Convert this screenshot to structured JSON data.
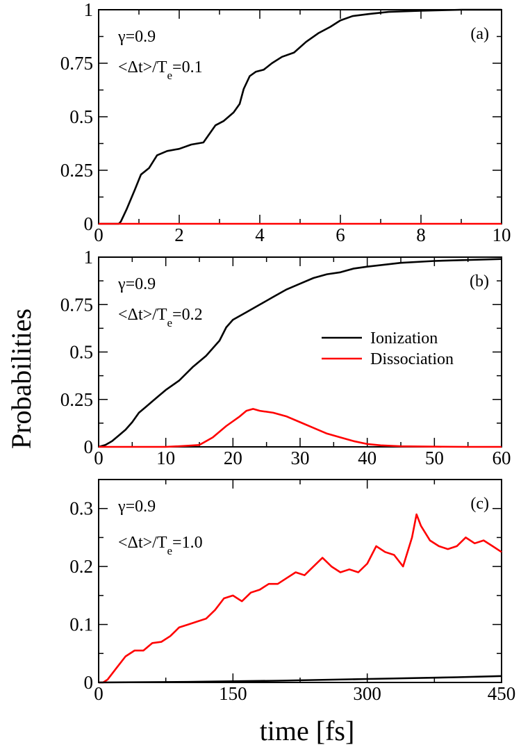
{
  "figure": {
    "ylabel": "Probabilities",
    "xlabel": "time [fs]"
  },
  "colors": {
    "ionization": "#000000",
    "dissociation": "#ff0000"
  },
  "chart_data": [
    {
      "panel": "(a)",
      "type": "line",
      "annotations": {
        "gamma": "γ=0.9",
        "ratio_main": "<Δt>/T",
        "ratio_sub": "e",
        "ratio_value": "=0.1"
      },
      "xlim": [
        0,
        10
      ],
      "ylim": [
        0,
        1
      ],
      "xticks": [
        0,
        2,
        4,
        6,
        8,
        10
      ],
      "yticks": [
        0,
        0.25,
        0.5,
        0.75,
        1
      ],
      "ytick_labels": [
        "0",
        "0.25",
        "0.5",
        "0.75",
        "1"
      ],
      "series": [
        {
          "key": "ionization",
          "x": [
            0,
            0.5,
            0.55,
            0.7,
            0.9,
            1.05,
            1.25,
            1.45,
            1.7,
            2.0,
            2.3,
            2.6,
            2.75,
            2.9,
            3.1,
            3.35,
            3.5,
            3.6,
            3.75,
            3.9,
            4.1,
            4.3,
            4.55,
            4.85,
            5.15,
            5.45,
            5.75,
            6.0,
            6.3,
            6.7,
            7.2,
            8.0,
            9.0,
            10.0
          ],
          "y": [
            0,
            0,
            0.01,
            0.07,
            0.16,
            0.23,
            0.26,
            0.32,
            0.34,
            0.35,
            0.37,
            0.38,
            0.42,
            0.46,
            0.48,
            0.52,
            0.56,
            0.63,
            0.69,
            0.71,
            0.72,
            0.75,
            0.78,
            0.8,
            0.85,
            0.89,
            0.92,
            0.95,
            0.97,
            0.98,
            0.99,
            0.995,
            1.0,
            1.0
          ]
        },
        {
          "key": "dissociation",
          "x": [
            0,
            10
          ],
          "y": [
            0,
            0
          ]
        }
      ]
    },
    {
      "panel": "(b)",
      "type": "line",
      "annotations": {
        "gamma": "γ=0.9",
        "ratio_main": "<Δt>/T",
        "ratio_sub": "e",
        "ratio_value": "=0.2"
      },
      "legend": {
        "ionization": "Ionization",
        "dissociation": "Dissociation"
      },
      "xlim": [
        0,
        60
      ],
      "ylim": [
        0,
        1
      ],
      "xticks": [
        0,
        10,
        20,
        30,
        40,
        50,
        60
      ],
      "yticks": [
        0,
        0.25,
        0.5,
        0.75,
        1
      ],
      "ytick_labels": [
        "0",
        "0.25",
        "0.5",
        "0.75",
        "1"
      ],
      "series": [
        {
          "key": "ionization",
          "x": [
            0,
            1,
            2,
            3,
            4,
            5,
            6,
            7,
            8,
            9,
            10,
            12,
            14,
            16,
            18,
            19,
            20,
            22,
            24,
            26,
            28,
            30,
            32,
            34,
            36,
            38,
            40,
            45,
            50,
            55,
            60
          ],
          "y": [
            0,
            0.01,
            0.03,
            0.06,
            0.09,
            0.13,
            0.18,
            0.21,
            0.24,
            0.27,
            0.3,
            0.35,
            0.42,
            0.48,
            0.56,
            0.63,
            0.67,
            0.71,
            0.75,
            0.79,
            0.83,
            0.86,
            0.89,
            0.91,
            0.92,
            0.94,
            0.95,
            0.97,
            0.98,
            0.985,
            0.99
          ]
        },
        {
          "key": "dissociation",
          "x": [
            0,
            5,
            10,
            13,
            15,
            17,
            19,
            21,
            22,
            23,
            24,
            26,
            28,
            30,
            32,
            34,
            36,
            38,
            40,
            42,
            45,
            50,
            55,
            60
          ],
          "y": [
            0,
            0,
            0,
            0.005,
            0.01,
            0.05,
            0.11,
            0.16,
            0.19,
            0.2,
            0.19,
            0.18,
            0.16,
            0.13,
            0.1,
            0.07,
            0.05,
            0.03,
            0.015,
            0.008,
            0.003,
            0.001,
            0,
            0
          ]
        }
      ]
    },
    {
      "panel": "(c)",
      "type": "line",
      "annotations": {
        "gamma": "γ=0.9",
        "ratio_main": "<Δt>/T",
        "ratio_sub": "e",
        "ratio_value": "=1.0"
      },
      "xlim": [
        0,
        450
      ],
      "ylim": [
        0,
        0.35
      ],
      "xticks": [
        0,
        150,
        300,
        450
      ],
      "yticks": [
        0,
        0.1,
        0.2,
        0.3
      ],
      "ytick_labels": [
        "0",
        "0.1",
        "0.2",
        "0.3"
      ],
      "series": [
        {
          "key": "dissociation",
          "x": [
            0,
            5,
            10,
            20,
            30,
            40,
            50,
            60,
            70,
            80,
            90,
            100,
            110,
            120,
            130,
            140,
            150,
            160,
            170,
            180,
            190,
            200,
            210,
            220,
            230,
            240,
            250,
            260,
            270,
            280,
            290,
            300,
            310,
            320,
            330,
            340,
            350,
            355,
            360,
            370,
            380,
            390,
            400,
            410,
            420,
            430,
            440,
            450
          ],
          "y": [
            0,
            0,
            0.005,
            0.025,
            0.045,
            0.055,
            0.055,
            0.068,
            0.07,
            0.08,
            0.095,
            0.1,
            0.105,
            0.11,
            0.125,
            0.145,
            0.15,
            0.14,
            0.155,
            0.16,
            0.17,
            0.17,
            0.18,
            0.19,
            0.185,
            0.2,
            0.215,
            0.2,
            0.19,
            0.195,
            0.19,
            0.205,
            0.235,
            0.225,
            0.22,
            0.2,
            0.25,
            0.29,
            0.27,
            0.245,
            0.235,
            0.23,
            0.235,
            0.25,
            0.24,
            0.245,
            0.235,
            0.225
          ]
        },
        {
          "key": "ionization",
          "x": [
            0,
            100,
            200,
            300,
            400,
            450
          ],
          "y": [
            0,
            0.001,
            0.003,
            0.006,
            0.009,
            0.011
          ]
        }
      ]
    }
  ]
}
